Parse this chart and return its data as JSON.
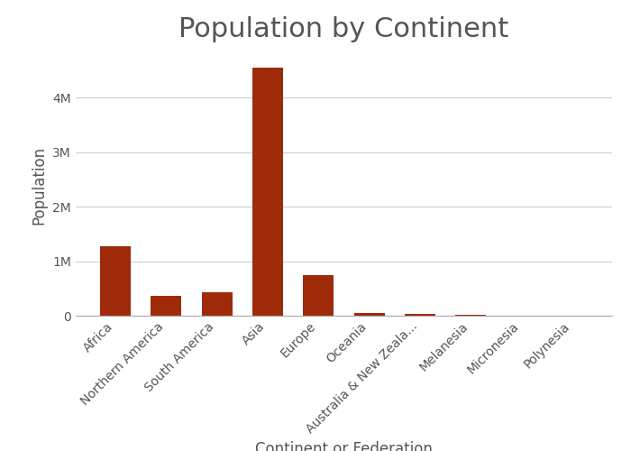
{
  "categories": [
    "Africa",
    "Northern America",
    "South America",
    "Asia",
    "Europe",
    "Oceania",
    "Australia & New Zeala...",
    "Melanesia",
    "Micronesia",
    "Polynesia"
  ],
  "values": [
    1280000,
    370000,
    430000,
    4560000,
    740000,
    42000,
    30000,
    10000,
    1200,
    700
  ],
  "bar_color": "#9e2a0a",
  "title": "Population by Continent",
  "xlabel": "Continent or Federation",
  "ylabel": "Population",
  "background_color": "#ffffff",
  "title_fontsize": 22,
  "axis_label_fontsize": 12,
  "tick_fontsize": 10,
  "title_color": "#555555",
  "axis_label_color": "#555555",
  "tick_color": "#555555"
}
